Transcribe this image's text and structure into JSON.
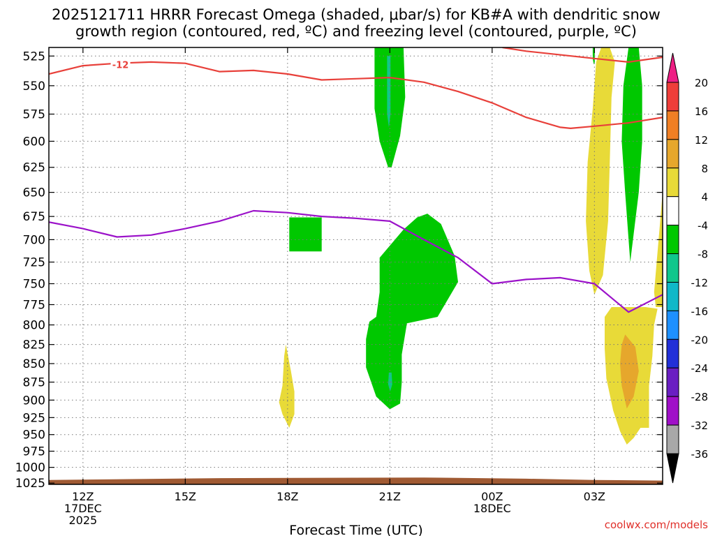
{
  "title_line1": "2025121711 HRRR Forecast Omega (shaded, μbar/s) for KB#A with dendritic snow",
  "title_line2": "growth region (contoured, red, ºC) and freezing level (contoured, purple, ºC)",
  "credit": "coolwx.com/models",
  "chart_data": {
    "type": "heatmap",
    "title": "2025121711 HRRR Forecast Omega (shaded, μbar/s) for KB#A with dendritic snow growth region (contoured, red, ºC) and freezing level (contoured, purple, ºC)",
    "xlabel": "Forecast Time (UTC)",
    "ylabel": "",
    "x_hours_from_12Z_17DEC": [
      -1,
      17
    ],
    "y_pressure_hPa": {
      "top": 518,
      "bottom": 1027
    },
    "x_ticks": [
      {
        "h": 0,
        "lines": [
          "12Z",
          "17DEC",
          "2025"
        ]
      },
      {
        "h": 3,
        "lines": [
          "15Z"
        ]
      },
      {
        "h": 6,
        "lines": [
          "18Z"
        ]
      },
      {
        "h": 9,
        "lines": [
          "21Z"
        ]
      },
      {
        "h": 12,
        "lines": [
          "00Z",
          "18DEC"
        ]
      },
      {
        "h": 15,
        "lines": [
          "03Z"
        ]
      }
    ],
    "y_ticks": [
      525,
      550,
      575,
      600,
      625,
      650,
      675,
      700,
      725,
      750,
      775,
      800,
      825,
      850,
      875,
      900,
      925,
      950,
      975,
      1000,
      1025
    ],
    "grid": true,
    "colorbar": {
      "ticks": [
        "20",
        "16",
        "12",
        "8",
        "4",
        "-4",
        "-8",
        "-12",
        "-16",
        "-20",
        "-24",
        "-28",
        "-32",
        "-36"
      ],
      "colors": [
        "#ee1f84",
        "#ef3e3a",
        "#f07f24",
        "#e6a72c",
        "#e8da38",
        "#ffffff",
        "#00c800",
        "#10c78c",
        "#10b8c8",
        "#1e90ff",
        "#2230d8",
        "#6a1fc2",
        "#a010c8",
        "#a8a8a8",
        "#000000"
      ]
    },
    "contour_labels": [
      {
        "text": "-12",
        "h": 1.1,
        "p": 532
      }
    ],
    "freezing_level": {
      "label": "freezing level (purple)",
      "points": [
        [
          -1,
          681
        ],
        [
          0,
          688
        ],
        [
          1,
          697
        ],
        [
          2,
          695
        ],
        [
          3,
          688
        ],
        [
          4,
          680
        ],
        [
          5,
          669
        ],
        [
          6,
          671
        ],
        [
          7,
          675
        ],
        [
          8,
          677
        ],
        [
          9,
          680
        ],
        [
          10,
          700
        ],
        [
          11,
          720
        ],
        [
          12,
          750
        ],
        [
          13,
          745
        ],
        [
          14,
          743
        ],
        [
          15,
          750
        ],
        [
          16,
          784
        ],
        [
          17,
          763
        ]
      ]
    },
    "dendritic_region_line": {
      "label": "-12 ºC (red)",
      "points_lower": [
        [
          -1,
          540
        ],
        [
          0,
          533
        ],
        [
          1,
          531
        ],
        [
          2,
          530
        ],
        [
          3,
          531
        ],
        [
          4,
          538
        ],
        [
          5,
          537
        ],
        [
          6,
          540
        ],
        [
          7,
          545
        ],
        [
          8,
          544
        ],
        [
          9,
          543
        ],
        [
          10,
          547
        ],
        [
          11,
          555
        ],
        [
          12,
          565
        ],
        [
          13,
          578
        ],
        [
          14,
          587
        ],
        [
          14.3,
          588
        ],
        [
          15,
          586
        ],
        [
          16,
          583
        ],
        [
          17,
          578
        ]
      ],
      "points_upper": [
        [
          12.3,
          518
        ],
        [
          13,
          521
        ],
        [
          15,
          527
        ],
        [
          16,
          530
        ],
        [
          17,
          526
        ]
      ]
    },
    "shaded_regions": [
      {
        "color": "#00c800",
        "label": "-4 to -8",
        "polygon": [
          [
            8.55,
            518
          ],
          [
            9.4,
            518
          ],
          [
            9.45,
            560
          ],
          [
            9.3,
            595
          ],
          [
            9.05,
            625
          ],
          [
            8.95,
            625
          ],
          [
            8.7,
            600
          ],
          [
            8.55,
            570
          ]
        ]
      },
      {
        "color": "#10c78c",
        "label": "-8 to -12",
        "polygon": [
          [
            8.92,
            525
          ],
          [
            9.02,
            525
          ],
          [
            9.02,
            575
          ],
          [
            8.97,
            587
          ],
          [
            8.92,
            575
          ]
        ]
      },
      {
        "color": "#00c800",
        "label": "-4 to -8",
        "polygon": [
          [
            6.05,
            676
          ],
          [
            7.0,
            676
          ],
          [
            7.0,
            713
          ],
          [
            6.05,
            713
          ]
        ]
      },
      {
        "color": "#00c800",
        "label": "-4 to -8",
        "polygon": [
          [
            9.8,
            676
          ],
          [
            10.1,
            672
          ],
          [
            10.5,
            683
          ],
          [
            10.9,
            718
          ],
          [
            11.0,
            748
          ],
          [
            10.4,
            790
          ],
          [
            9.5,
            798
          ],
          [
            9.35,
            838
          ],
          [
            9.35,
            875
          ],
          [
            9.3,
            905
          ],
          [
            9.0,
            913
          ],
          [
            8.6,
            895
          ],
          [
            8.3,
            855
          ],
          [
            8.3,
            818
          ],
          [
            8.4,
            796
          ],
          [
            8.6,
            790
          ],
          [
            8.7,
            760
          ],
          [
            8.7,
            720
          ],
          [
            9.4,
            689
          ]
        ]
      },
      {
        "color": "#10c78c",
        "label": "-8 to -12",
        "polygon": [
          [
            8.97,
            862
          ],
          [
            9.05,
            862
          ],
          [
            9.07,
            878
          ],
          [
            9.01,
            888
          ],
          [
            8.95,
            878
          ]
        ]
      },
      {
        "color": "#00c800",
        "label": "-4 to -8",
        "polygon": [
          [
            14.95,
            518
          ],
          [
            15.01,
            518
          ],
          [
            15.01,
            530
          ],
          [
            14.98,
            532
          ],
          [
            14.95,
            527
          ]
        ]
      },
      {
        "color": "#e8da38",
        "label": "4 to 8",
        "polygon": [
          [
            15.2,
            518
          ],
          [
            15.45,
            518
          ],
          [
            15.6,
            530
          ],
          [
            15.5,
            560
          ],
          [
            15.45,
            620
          ],
          [
            15.4,
            680
          ],
          [
            15.25,
            740
          ],
          [
            15.0,
            763
          ],
          [
            14.85,
            735
          ],
          [
            14.75,
            680
          ],
          [
            14.8,
            620
          ],
          [
            14.95,
            570
          ],
          [
            15.05,
            530
          ]
        ]
      },
      {
        "color": "#00c800",
        "label": "-4 to -8",
        "polygon": [
          [
            16.0,
            518
          ],
          [
            16.3,
            518
          ],
          [
            16.4,
            550
          ],
          [
            16.4,
            600
          ],
          [
            16.3,
            650
          ],
          [
            16.05,
            725
          ],
          [
            15.9,
            650
          ],
          [
            15.8,
            600
          ],
          [
            15.85,
            550
          ]
        ]
      },
      {
        "color": "#e8da38",
        "label": "4 to 8",
        "polygon": [
          [
            15.3,
            790
          ],
          [
            15.5,
            778
          ],
          [
            16.5,
            778
          ],
          [
            16.85,
            780
          ],
          [
            16.75,
            800
          ],
          [
            16.7,
            840
          ],
          [
            16.6,
            880
          ],
          [
            16.6,
            940
          ],
          [
            16.35,
            940
          ],
          [
            16.15,
            955
          ],
          [
            15.95,
            965
          ],
          [
            15.75,
            945
          ],
          [
            15.55,
            915
          ],
          [
            15.35,
            870
          ],
          [
            15.3,
            830
          ]
        ]
      },
      {
        "color": "#e6a72c",
        "label": "8 to 12",
        "polygon": [
          [
            15.9,
            812
          ],
          [
            16.2,
            828
          ],
          [
            16.3,
            860
          ],
          [
            16.15,
            895
          ],
          [
            15.95,
            912
          ],
          [
            15.8,
            880
          ],
          [
            15.75,
            850
          ],
          [
            15.8,
            825
          ]
        ]
      },
      {
        "color": "#e8da38",
        "label": "4 to 8",
        "polygon": [
          [
            16.75,
            760
          ],
          [
            17.0,
            650
          ],
          [
            17.0,
            778
          ],
          [
            16.8,
            778
          ]
        ]
      },
      {
        "color": "#e8da38",
        "label": "4 to 8",
        "polygon": [
          [
            5.9,
            840
          ],
          [
            5.95,
            825
          ],
          [
            6.1,
            860
          ],
          [
            6.2,
            888
          ],
          [
            6.2,
            920
          ],
          [
            6.05,
            940
          ],
          [
            5.85,
            920
          ],
          [
            5.75,
            903
          ],
          [
            5.85,
            880
          ]
        ]
      }
    ],
    "terrain": {
      "color": "#a05a33",
      "points": [
        [
          -1,
          1020
        ],
        [
          4,
          1017
        ],
        [
          10,
          1016
        ],
        [
          13,
          1018
        ],
        [
          15,
          1020
        ],
        [
          17,
          1021
        ]
      ]
    }
  }
}
